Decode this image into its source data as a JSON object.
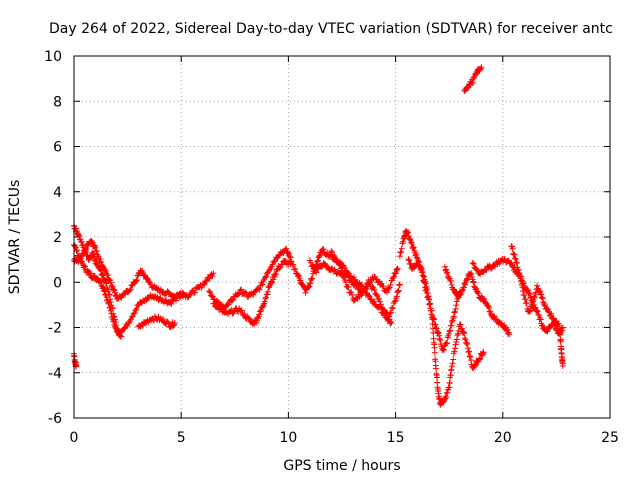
{
  "chart_data": {
    "type": "scatter",
    "title": "Day 264 of 2022, Sidereal Day-to-day VTEC variation (SDTVAR) for receiver antc",
    "xlabel": "GPS time / hours",
    "ylabel": "SDTVAR / TECUs",
    "xlim": [
      0,
      25
    ],
    "ylim": [
      -6,
      10
    ],
    "xticks": [
      "0",
      "5",
      "10",
      "15",
      "20",
      "25"
    ],
    "yticks": [
      "-6",
      "-4",
      "-2",
      "0",
      "2",
      "4",
      "6",
      "8",
      "10"
    ],
    "grid": true,
    "marker": "+",
    "series": [
      {
        "name": "SDTVAR",
        "color": "#ff0000",
        "tracks": [
          [
            [
              0.0,
              2.5
            ],
            [
              0.1,
              2.3
            ],
            [
              0.3,
              1.9
            ],
            [
              0.5,
              1.4
            ],
            [
              0.7,
              1.0
            ],
            [
              0.9,
              1.3
            ],
            [
              1.0,
              0.9
            ],
            [
              1.2,
              0.6
            ],
            [
              1.4,
              0.2
            ],
            [
              1.6,
              -0.4
            ],
            [
              1.8,
              -1.2
            ],
            [
              2.0,
              -2.1
            ],
            [
              2.2,
              -2.4
            ]
          ],
          [
            [
              0.0,
              1.7
            ],
            [
              0.2,
              1.2
            ],
            [
              0.4,
              0.8
            ],
            [
              0.6,
              0.5
            ],
            [
              0.8,
              0.3
            ],
            [
              1.0,
              0.2
            ],
            [
              1.2,
              0.1
            ],
            [
              1.4,
              -0.3
            ],
            [
              1.6,
              -0.9
            ],
            [
              1.8,
              -1.6
            ],
            [
              2.0,
              -2.1
            ],
            [
              2.1,
              -2.3
            ]
          ],
          [
            [
              0.0,
              1.0
            ],
            [
              0.2,
              0.9
            ],
            [
              0.4,
              1.2
            ],
            [
              0.6,
              1.6
            ],
            [
              0.8,
              1.8
            ],
            [
              1.0,
              1.5
            ],
            [
              1.2,
              1.0
            ],
            [
              1.4,
              0.6
            ],
            [
              1.6,
              0.2
            ],
            [
              1.8,
              -0.2
            ],
            [
              2.0,
              -0.6
            ]
          ],
          [
            [
              0.0,
              -3.2
            ],
            [
              0.05,
              -3.5
            ],
            [
              0.1,
              -3.7
            ]
          ],
          [
            [
              2.0,
              -0.7
            ],
            [
              2.3,
              -0.6
            ],
            [
              2.6,
              -0.3
            ],
            [
              2.9,
              0.1
            ],
            [
              3.1,
              0.5
            ],
            [
              3.3,
              0.3
            ],
            [
              3.5,
              0.0
            ],
            [
              3.8,
              -0.3
            ],
            [
              4.1,
              -0.4
            ],
            [
              4.4,
              -0.5
            ],
            [
              4.7,
              -0.6
            ],
            [
              5.0,
              -0.5
            ],
            [
              5.3,
              -0.6
            ],
            [
              5.6,
              -0.4
            ],
            [
              5.9,
              -0.2
            ],
            [
              6.2,
              0.1
            ],
            [
              6.5,
              0.4
            ]
          ],
          [
            [
              2.1,
              -2.2
            ],
            [
              2.4,
              -2.0
            ],
            [
              2.7,
              -1.5
            ],
            [
              3.0,
              -1.0
            ],
            [
              3.3,
              -0.8
            ],
            [
              3.6,
              -0.6
            ],
            [
              3.9,
              -0.7
            ],
            [
              4.2,
              -0.8
            ],
            [
              4.5,
              -0.9
            ],
            [
              4.8,
              -0.7
            ],
            [
              5.1,
              -0.5
            ]
          ],
          [
            [
              3.0,
              -2.0
            ],
            [
              3.3,
              -1.8
            ],
            [
              3.6,
              -1.6
            ],
            [
              3.9,
              -1.6
            ],
            [
              4.2,
              -1.7
            ],
            [
              4.5,
              -1.9
            ],
            [
              4.7,
              -1.8
            ]
          ],
          [
            [
              6.3,
              -0.4
            ],
            [
              6.6,
              -0.8
            ],
            [
              6.9,
              -1.1
            ],
            [
              7.2,
              -1.0
            ],
            [
              7.5,
              -0.6
            ],
            [
              7.8,
              -0.4
            ],
            [
              8.1,
              -0.6
            ],
            [
              8.4,
              -0.5
            ],
            [
              8.7,
              -0.2
            ],
            [
              9.0,
              0.4
            ],
            [
              9.3,
              0.9
            ],
            [
              9.6,
              1.3
            ],
            [
              9.9,
              1.4
            ],
            [
              10.1,
              1.1
            ]
          ],
          [
            [
              6.5,
              -0.9
            ],
            [
              6.8,
              -1.2
            ],
            [
              7.1,
              -1.4
            ],
            [
              7.4,
              -1.3
            ],
            [
              7.7,
              -1.2
            ],
            [
              8.0,
              -1.5
            ],
            [
              8.3,
              -1.8
            ],
            [
              8.5,
              -1.7
            ],
            [
              8.7,
              -1.3
            ],
            [
              8.9,
              -0.8
            ],
            [
              9.1,
              -0.2
            ],
            [
              9.3,
              0.2
            ],
            [
              9.5,
              0.6
            ],
            [
              9.8,
              0.9
            ],
            [
              10.1,
              0.8
            ]
          ],
          [
            [
              10.1,
              0.9
            ],
            [
              10.4,
              0.4
            ],
            [
              10.6,
              0.0
            ],
            [
              10.8,
              -0.4
            ],
            [
              11.0,
              -0.1
            ],
            [
              11.2,
              0.5
            ],
            [
              11.4,
              1.1
            ],
            [
              11.6,
              1.4
            ],
            [
              11.9,
              1.2
            ],
            [
              12.2,
              1.0
            ],
            [
              12.5,
              0.8
            ],
            [
              12.8,
              0.4
            ],
            [
              13.1,
              0.1
            ],
            [
              13.4,
              -0.2
            ],
            [
              13.7,
              -0.6
            ],
            [
              14.0,
              -0.9
            ],
            [
              14.3,
              -1.2
            ],
            [
              14.6,
              -1.6
            ],
            [
              14.8,
              -1.8
            ]
          ],
          [
            [
              11.0,
              0.9
            ],
            [
              11.3,
              0.5
            ],
            [
              11.6,
              0.8
            ],
            [
              11.9,
              0.6
            ],
            [
              12.2,
              0.5
            ],
            [
              12.5,
              0.3
            ],
            [
              12.8,
              -0.3
            ],
            [
              13.1,
              -0.8
            ],
            [
              13.4,
              -0.5
            ],
            [
              13.7,
              0.0
            ],
            [
              14.0,
              0.2
            ],
            [
              14.3,
              -0.1
            ],
            [
              14.6,
              -0.4
            ],
            [
              14.9,
              0.2
            ],
            [
              15.1,
              0.6
            ]
          ],
          [
            [
              12.0,
              1.3
            ],
            [
              12.3,
              0.9
            ],
            [
              12.6,
              0.4
            ],
            [
              12.9,
              0.1
            ],
            [
              13.2,
              -0.2
            ],
            [
              13.5,
              -0.4
            ],
            [
              13.8,
              -0.1
            ],
            [
              14.1,
              -0.5
            ],
            [
              14.4,
              -1.2
            ],
            [
              14.7,
              -1.5
            ],
            [
              15.0,
              -0.8
            ],
            [
              15.2,
              -0.1
            ]
          ],
          [
            [
              15.2,
              1.2
            ],
            [
              15.4,
              2.0
            ],
            [
              15.5,
              2.3
            ],
            [
              15.7,
              1.9
            ],
            [
              15.9,
              1.3
            ],
            [
              16.1,
              0.8
            ],
            [
              16.3,
              0.3
            ],
            [
              16.5,
              -0.4
            ],
            [
              16.7,
              -1.5
            ],
            [
              16.8,
              -2.8
            ],
            [
              16.9,
              -4.0
            ],
            [
              17.0,
              -5.0
            ],
            [
              17.1,
              -5.4
            ],
            [
              17.3,
              -5.2
            ],
            [
              17.5,
              -4.6
            ],
            [
              17.6,
              -3.8
            ],
            [
              17.8,
              -2.8
            ],
            [
              18.0,
              -1.9
            ],
            [
              18.2,
              -2.3
            ],
            [
              18.4,
              -3.0
            ],
            [
              18.6,
              -3.8
            ],
            [
              18.8,
              -3.5
            ],
            [
              19.0,
              -3.2
            ],
            [
              19.1,
              -3.1
            ]
          ],
          [
            [
              15.6,
              1.0
            ],
            [
              15.8,
              0.6
            ],
            [
              16.0,
              0.9
            ],
            [
              16.2,
              0.5
            ],
            [
              16.4,
              -0.3
            ],
            [
              16.6,
              -1.0
            ],
            [
              16.8,
              -1.7
            ],
            [
              17.0,
              -2.3
            ],
            [
              17.2,
              -3.0
            ],
            [
              17.4,
              -2.6
            ],
            [
              17.6,
              -1.9
            ],
            [
              17.8,
              -1.1
            ],
            [
              18.0,
              -0.4
            ]
          ],
          [
            [
              17.3,
              0.6
            ],
            [
              17.5,
              0.2
            ],
            [
              17.7,
              -0.3
            ],
            [
              17.9,
              -0.6
            ],
            [
              18.1,
              -0.4
            ],
            [
              18.3,
              0.1
            ],
            [
              18.5,
              0.4
            ],
            [
              18.7,
              -0.2
            ],
            [
              18.9,
              -0.6
            ],
            [
              19.1,
              -0.8
            ],
            [
              19.3,
              -1.0
            ],
            [
              19.5,
              -1.5
            ],
            [
              19.7,
              -1.7
            ],
            [
              19.9,
              -1.8
            ],
            [
              20.1,
              -2.0
            ],
            [
              20.3,
              -2.3
            ]
          ],
          [
            [
              18.6,
              0.8
            ],
            [
              18.9,
              0.4
            ],
            [
              19.2,
              0.6
            ],
            [
              19.5,
              0.7
            ],
            [
              19.8,
              0.9
            ],
            [
              20.1,
              1.0
            ],
            [
              20.4,
              0.8
            ],
            [
              20.6,
              0.5
            ],
            [
              20.8,
              0.3
            ],
            [
              21.0,
              -0.6
            ],
            [
              21.2,
              -1.3
            ],
            [
              21.4,
              -1.0
            ],
            [
              21.6,
              -1.3
            ],
            [
              21.8,
              -1.8
            ],
            [
              22.0,
              -2.2
            ],
            [
              22.2,
              -2.0
            ],
            [
              22.4,
              -1.8
            ],
            [
              22.6,
              -2.3
            ],
            [
              22.8,
              -2.0
            ]
          ],
          [
            [
              20.4,
              1.6
            ],
            [
              20.6,
              1.0
            ],
            [
              20.8,
              0.3
            ],
            [
              21.0,
              -0.2
            ],
            [
              21.2,
              -0.4
            ],
            [
              21.4,
              -0.9
            ],
            [
              21.6,
              -0.2
            ],
            [
              21.8,
              -0.6
            ],
            [
              22.0,
              -1.1
            ],
            [
              22.2,
              -1.4
            ],
            [
              22.4,
              -1.7
            ],
            [
              22.6,
              -1.9
            ],
            [
              22.7,
              -2.6
            ],
            [
              22.75,
              -3.3
            ],
            [
              22.8,
              -3.7
            ]
          ],
          [
            [
              18.2,
              8.5
            ],
            [
              18.4,
              8.7
            ],
            [
              18.6,
              8.9
            ],
            [
              18.8,
              9.3
            ],
            [
              19.0,
              9.5
            ]
          ]
        ]
      }
    ]
  }
}
